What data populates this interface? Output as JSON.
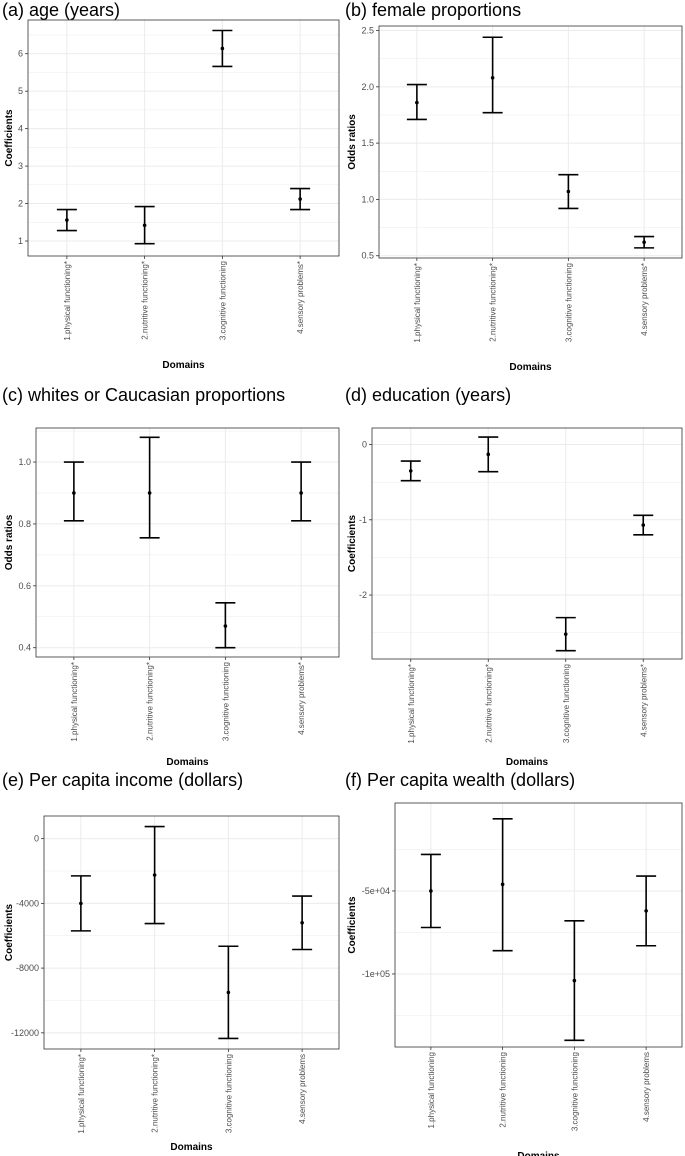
{
  "page": {
    "background": "#ffffff"
  },
  "style": {
    "grid_color": "#ebebeb",
    "border_color": "#333333",
    "mark_color": "#000000"
  },
  "chart_data": [
    {
      "panel_title": "(a) age (years)",
      "type": "errorbar",
      "categories": [
        "1.physical functioning*",
        "2.nutritive functioning*",
        "3.cognitive functioning",
        "4.sensory problems*"
      ],
      "values": [
        1.56,
        1.42,
        6.14,
        2.12
      ],
      "lower": [
        1.28,
        0.93,
        5.66,
        1.84
      ],
      "upper": [
        1.84,
        1.92,
        6.62,
        2.4
      ],
      "xlabel": "Domains",
      "ylabel": "Coefficients",
      "yticks": [
        "1",
        "2",
        "3",
        "4",
        "5",
        "6"
      ],
      "ytick_values": [
        1,
        2,
        3,
        4,
        5,
        6
      ],
      "ylim": [
        0.6,
        6.9
      ],
      "grid": true
    },
    {
      "panel_title": "(b) female proportions",
      "type": "errorbar",
      "categories": [
        "1.physical functioning*",
        "2.nutritive functioning*",
        "3.cognitive functioning",
        "4.sensory problems*"
      ],
      "values": [
        1.86,
        2.08,
        1.07,
        0.62
      ],
      "lower": [
        1.71,
        1.77,
        0.92,
        0.57
      ],
      "upper": [
        2.02,
        2.44,
        1.22,
        0.67
      ],
      "xlabel": "Domains",
      "ylabel": "Odds ratios",
      "yticks": [
        "0.5",
        "1.0",
        "1.5",
        "2.0",
        "2.5"
      ],
      "ytick_values": [
        0.5,
        1.0,
        1.5,
        2.0,
        2.5
      ],
      "ylim": [
        0.48,
        2.54
      ],
      "grid": true
    },
    {
      "panel_title": "(c) whites or Caucasian proportions",
      "type": "errorbar",
      "categories": [
        "1.physical functioning*",
        "2.nutritive functioning*",
        "3.cognitive functioning",
        "4.sensory problems*"
      ],
      "values": [
        0.9,
        0.9,
        0.47,
        0.9
      ],
      "lower": [
        0.81,
        0.755,
        0.4,
        0.81
      ],
      "upper": [
        1.0,
        1.08,
        0.545,
        1.0
      ],
      "xlabel": "Domains",
      "ylabel": "Odds ratios",
      "yticks": [
        "0.4",
        "0.6",
        "0.8",
        "1.0"
      ],
      "ytick_values": [
        0.4,
        0.6,
        0.8,
        1.0
      ],
      "ylim": [
        0.37,
        1.11
      ],
      "grid": true
    },
    {
      "panel_title": "(d) education (years)",
      "type": "errorbar",
      "categories": [
        "1.physical functioning*",
        "2.nutritive functioning*",
        "3.cognitive functioning",
        "4.sensory problems*"
      ],
      "values": [
        -0.35,
        -0.13,
        -2.52,
        -1.07
      ],
      "lower": [
        -0.48,
        -0.36,
        -2.74,
        -1.2
      ],
      "upper": [
        -0.22,
        0.1,
        -2.3,
        -0.94
      ],
      "xlabel": "Domains",
      "ylabel": "Coefficients",
      "yticks": [
        "-2",
        "-1",
        "0"
      ],
      "ytick_values": [
        -2,
        -1,
        0
      ],
      "ylim": [
        -2.85,
        0.22
      ],
      "grid": true
    },
    {
      "panel_title": "(e) Per capita income (dollars)",
      "type": "errorbar",
      "categories": [
        "1.physical functioning*",
        "2.nutritive functioning*",
        "3.cognitive functioning",
        "4.sensory problems"
      ],
      "values": [
        -4000,
        -2250,
        -9500,
        -5200
      ],
      "lower": [
        -5700,
        -5250,
        -12350,
        -6850
      ],
      "upper": [
        -2300,
        750,
        -6650,
        -3550
      ],
      "xlabel": "Domains",
      "ylabel": "Coefficients",
      "yticks": [
        "-12000",
        "-8000",
        "-4000",
        "0"
      ],
      "ytick_values": [
        -12000,
        -8000,
        -4000,
        0
      ],
      "ylim": [
        -13000,
        1400
      ],
      "grid": true
    },
    {
      "panel_title": "(f) Per capita wealth (dollars)",
      "type": "errorbar",
      "categories": [
        "1.physical functioning",
        "2.nutritive functioning",
        "3.cognitive functioning",
        "4.sensory problems"
      ],
      "values": [
        -50000,
        -46000,
        -104000,
        -62000
      ],
      "lower": [
        -72000,
        -86000,
        -140000,
        -83000
      ],
      "upper": [
        -28000,
        -6500,
        -68000,
        -41000
      ],
      "xlabel": "Domains",
      "ylabel": "Coefficients",
      "yticks": [
        "-1e+05",
        "-5e+04"
      ],
      "ytick_values": [
        -100000,
        -50000
      ],
      "ylim": [
        -144000,
        3000
      ],
      "grid": true
    }
  ]
}
